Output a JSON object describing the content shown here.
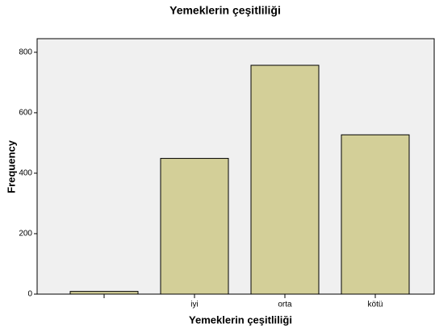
{
  "chart_data": {
    "type": "bar",
    "title": "Yemeklerin çeşitliliği",
    "x_label": "Yemeklerin çeşitliliği",
    "y_label": "Frequency",
    "categories": [
      null,
      "iyi",
      "orta",
      "kötü"
    ],
    "values": [
      9,
      449,
      757,
      527
    ],
    "color": "#d3cf98",
    "ylim": [
      0,
      845
    ],
    "yticks": [
      0,
      200,
      400,
      600,
      800
    ],
    "grid": false
  }
}
